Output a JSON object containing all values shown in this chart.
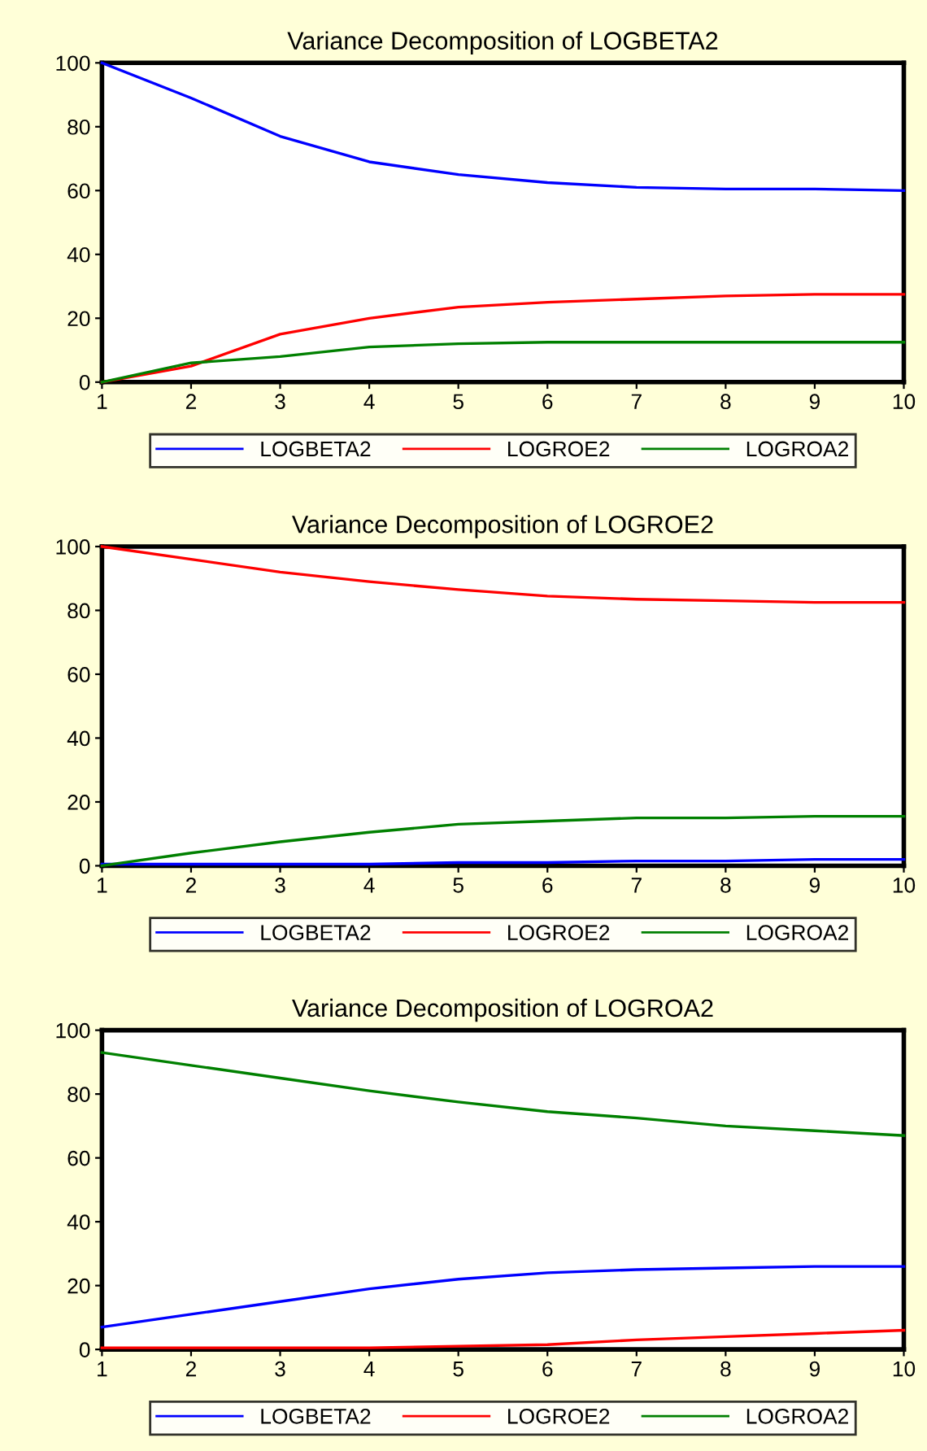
{
  "chart_data": [
    {
      "type": "line",
      "title": "Variance Decomposition of LOGBETA2",
      "x": [
        1,
        2,
        3,
        4,
        5,
        6,
        7,
        8,
        9,
        10
      ],
      "xlim": [
        1,
        10
      ],
      "xticks": [
        1,
        2,
        3,
        4,
        5,
        6,
        7,
        8,
        9,
        10
      ],
      "ylim": [
        0,
        100
      ],
      "yticks": [
        0,
        20,
        40,
        60,
        80,
        100
      ],
      "grid": false,
      "legend": "bottom",
      "series": [
        {
          "name": "LOGBETA2",
          "color": "#0000ff",
          "values": [
            100,
            89,
            77,
            69,
            65,
            62.5,
            61,
            60.5,
            60.5,
            60
          ]
        },
        {
          "name": "LOGROE2",
          "color": "#ff0000",
          "values": [
            0,
            5,
            15,
            20,
            23.5,
            25,
            26,
            27,
            27.5,
            27.5
          ]
        },
        {
          "name": "LOGROA2",
          "color": "#008000",
          "values": [
            0,
            6,
            8,
            11,
            12,
            12.5,
            12.5,
            12.5,
            12.5,
            12.5
          ]
        }
      ]
    },
    {
      "type": "line",
      "title": "Variance Decomposition of LOGROE2",
      "x": [
        1,
        2,
        3,
        4,
        5,
        6,
        7,
        8,
        9,
        10
      ],
      "xlim": [
        1,
        10
      ],
      "xticks": [
        1,
        2,
        3,
        4,
        5,
        6,
        7,
        8,
        9,
        10
      ],
      "ylim": [
        0,
        100
      ],
      "yticks": [
        0,
        20,
        40,
        60,
        80,
        100
      ],
      "grid": false,
      "legend": "bottom",
      "series": [
        {
          "name": "LOGBETA2",
          "color": "#0000ff",
          "values": [
            0.5,
            0.5,
            0.5,
            0.5,
            1,
            1,
            1.5,
            1.5,
            2,
            2
          ]
        },
        {
          "name": "LOGROE2",
          "color": "#ff0000",
          "values": [
            100,
            96,
            92,
            89,
            86.5,
            84.5,
            83.5,
            83,
            82.5,
            82.5
          ]
        },
        {
          "name": "LOGROA2",
          "color": "#008000",
          "values": [
            0,
            4,
            7.5,
            10.5,
            13,
            14,
            15,
            15,
            15.5,
            15.5
          ]
        }
      ]
    },
    {
      "type": "line",
      "title": "Variance Decomposition of LOGROA2",
      "x": [
        1,
        2,
        3,
        4,
        5,
        6,
        7,
        8,
        9,
        10
      ],
      "xlim": [
        1,
        10
      ],
      "xticks": [
        1,
        2,
        3,
        4,
        5,
        6,
        7,
        8,
        9,
        10
      ],
      "ylim": [
        0,
        100
      ],
      "yticks": [
        0,
        20,
        40,
        60,
        80,
        100
      ],
      "grid": false,
      "legend": "bottom",
      "series": [
        {
          "name": "LOGBETA2",
          "color": "#0000ff",
          "values": [
            7,
            11,
            15,
            19,
            22,
            24,
            25,
            25.5,
            26,
            26
          ]
        },
        {
          "name": "LOGROE2",
          "color": "#ff0000",
          "values": [
            0.5,
            0.5,
            0.5,
            0.5,
            1,
            1.5,
            3,
            4,
            5,
            6
          ]
        },
        {
          "name": "LOGROA2",
          "color": "#008000",
          "values": [
            93,
            89,
            85,
            81,
            77.5,
            74.5,
            72.5,
            70,
            68.5,
            67
          ]
        }
      ]
    }
  ]
}
